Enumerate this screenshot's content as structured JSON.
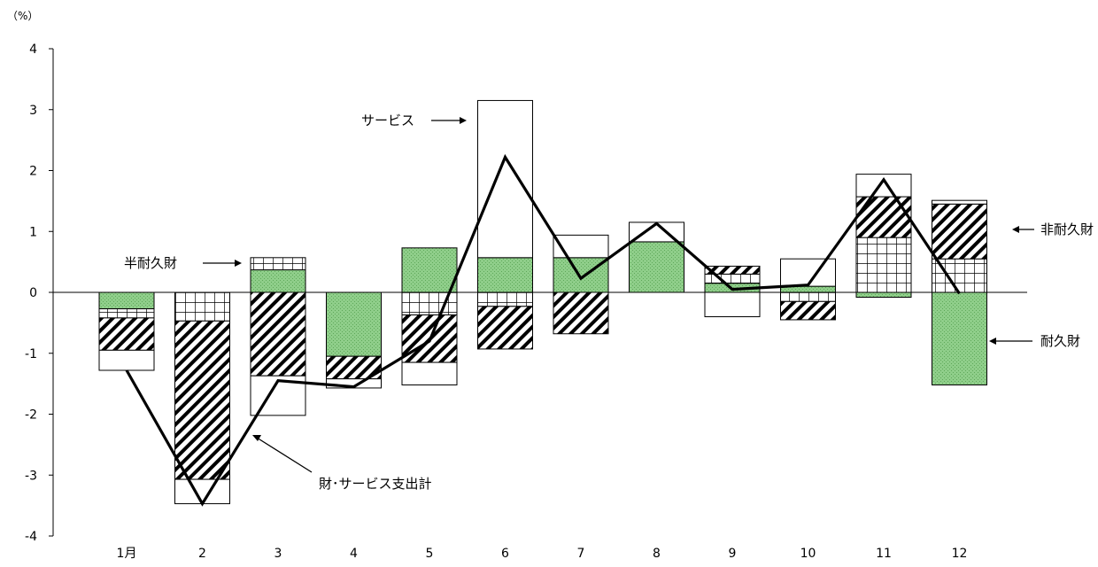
{
  "chart_data": {
    "type": "bar",
    "stacked": true,
    "unit_label": "（%）",
    "categories": [
      "1月",
      "2",
      "3",
      "4",
      "5",
      "6",
      "7",
      "8",
      "9",
      "10",
      "11",
      "12"
    ],
    "ylim": [
      -4,
      4
    ],
    "yticks": [
      4,
      3,
      2,
      1,
      0,
      -1,
      -2,
      -3,
      -4
    ],
    "series": [
      {
        "key": "durable",
        "pattern": "green-dots",
        "color": "#8fce8a",
        "values": [
          -0.27,
          0.0,
          0.37,
          -1.05,
          0.73,
          0.57,
          0.57,
          0.83,
          0.15,
          0.1,
          -0.08,
          -1.52
        ]
      },
      {
        "key": "semi_durable",
        "pattern": "grid",
        "values": [
          -0.15,
          -0.47,
          0.2,
          0.0,
          -0.37,
          -0.23,
          0.0,
          0.0,
          0.15,
          -0.15,
          0.9,
          0.55
        ]
      },
      {
        "key": "non_durable",
        "pattern": "diagonal-hatch",
        "values": [
          -0.53,
          -2.6,
          -1.37,
          -0.37,
          -0.78,
          -0.7,
          -0.68,
          0.0,
          0.13,
          -0.3,
          0.67,
          0.9
        ]
      },
      {
        "key": "services",
        "pattern": "white",
        "values": [
          -0.33,
          -0.4,
          -0.65,
          -0.15,
          -0.37,
          2.58,
          0.37,
          0.32,
          -0.4,
          0.45,
          0.37,
          0.06
        ]
      }
    ],
    "line": {
      "key": "total",
      "values": [
        -1.28,
        -3.47,
        -1.45,
        -1.55,
        -0.8,
        2.22,
        0.23,
        1.13,
        0.05,
        0.12,
        1.85,
        -0.02
      ]
    },
    "annotations": [
      {
        "key": "services",
        "text": "サービス"
      },
      {
        "key": "semi_durable",
        "text": "半耐久財"
      },
      {
        "key": "non_durable",
        "text": "非耐久財"
      },
      {
        "key": "durable",
        "text": "耐久財"
      },
      {
        "key": "total",
        "text": "財･サービス支出計"
      }
    ]
  }
}
